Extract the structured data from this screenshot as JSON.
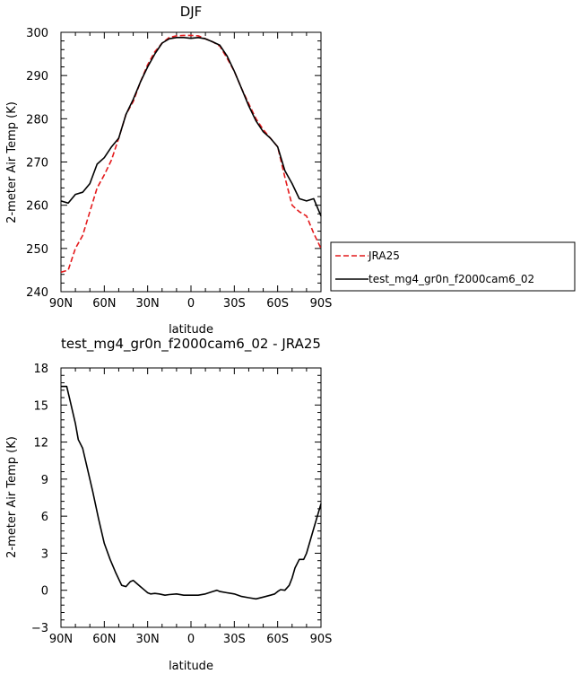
{
  "chart_data": [
    {
      "type": "line",
      "title": "DJF",
      "xlabel": "latitude",
      "ylabel": "2-meter Air Temp (K)",
      "xlim": [
        90,
        -90
      ],
      "ylim": [
        240,
        300
      ],
      "x_tick_values": [
        90,
        60,
        30,
        0,
        -30,
        -60,
        -90
      ],
      "x_tick_labels": [
        "90N",
        "60N",
        "30N",
        "0",
        "30S",
        "60S",
        "90S"
      ],
      "y_tick_values": [
        240,
        250,
        260,
        270,
        280,
        290,
        300
      ],
      "y_tick_labels": [
        "240",
        "250",
        "260",
        "270",
        "280",
        "290",
        "300"
      ],
      "grid": false,
      "legend_position": "right",
      "series": [
        {
          "name": "JRA25",
          "color": "#e41a1c",
          "dash": "dashed",
          "x": [
            90,
            85,
            80,
            75,
            70,
            65,
            60,
            55,
            50,
            45,
            40,
            35,
            30,
            25,
            20,
            15,
            10,
            5,
            0,
            -5,
            -10,
            -15,
            -20,
            -25,
            -30,
            -35,
            -40,
            -45,
            -50,
            -55,
            -60,
            -65,
            -70,
            -75,
            -80,
            -85,
            -90
          ],
          "y": [
            244.5,
            245.0,
            250.0,
            253.0,
            258.5,
            264.0,
            267.0,
            270.5,
            275.5,
            281.0,
            284.0,
            288.5,
            292.5,
            295.5,
            297.5,
            298.8,
            299.2,
            299.3,
            299.3,
            299.2,
            298.5,
            297.8,
            296.8,
            294.0,
            291.0,
            287.0,
            283.5,
            280.0,
            277.5,
            275.5,
            273.5,
            266.5,
            260.0,
            258.5,
            257.5,
            253.5,
            250.0
          ]
        },
        {
          "name": "test_mg4_gr0n_f2000cam6_02",
          "color": "#000000",
          "dash": "solid",
          "x": [
            90,
            85,
            80,
            75,
            70,
            65,
            60,
            55,
            50,
            45,
            40,
            35,
            30,
            25,
            20,
            15,
            10,
            5,
            0,
            -5,
            -10,
            -15,
            -20,
            -25,
            -30,
            -35,
            -40,
            -45,
            -50,
            -55,
            -60,
            -65,
            -70,
            -75,
            -80,
            -85,
            -90
          ],
          "y": [
            261.0,
            260.5,
            262.5,
            263.0,
            265.0,
            269.5,
            271.0,
            273.5,
            275.5,
            281.0,
            284.5,
            288.5,
            292.0,
            295.0,
            297.5,
            298.5,
            298.8,
            298.8,
            298.6,
            298.8,
            298.5,
            297.8,
            297.0,
            294.5,
            291.0,
            287.0,
            283.0,
            279.5,
            277.0,
            275.5,
            273.5,
            268.0,
            265.0,
            261.5,
            261.0,
            261.5,
            257.5
          ]
        }
      ]
    },
    {
      "type": "line",
      "title": "test_mg4_gr0n_f2000cam6_02 - JRA25",
      "xlabel": "latitude",
      "ylabel": "2-meter Air Temp (K)",
      "xlim": [
        90,
        -90
      ],
      "ylim": [
        -3,
        18
      ],
      "x_tick_values": [
        90,
        60,
        30,
        0,
        -30,
        -60,
        -90
      ],
      "x_tick_labels": [
        "90N",
        "60N",
        "30N",
        "0",
        "30S",
        "60S",
        "90S"
      ],
      "y_tick_values": [
        -3,
        0,
        3,
        6,
        9,
        12,
        15,
        18
      ],
      "y_tick_labels": [
        "-3",
        "0",
        "3",
        "6",
        "9",
        "12",
        "15",
        "18"
      ],
      "grid": false,
      "series": [
        {
          "color": "#000000",
          "dash": "solid",
          "x": [
            90,
            86,
            84,
            80,
            78,
            75,
            72,
            68,
            64,
            60,
            56,
            52,
            48,
            45,
            42,
            40,
            38,
            35,
            32,
            30,
            28,
            25,
            22,
            18,
            15,
            10,
            5,
            0,
            -5,
            -10,
            -15,
            -18,
            -20,
            -25,
            -30,
            -35,
            -40,
            -45,
            -50,
            -55,
            -58,
            -60,
            -62,
            -65,
            -68,
            -70,
            -72,
            -75,
            -78,
            -80,
            -85,
            -90
          ],
          "y": [
            16.5,
            16.5,
            15.5,
            13.5,
            12.2,
            11.5,
            10.0,
            8.0,
            5.8,
            3.8,
            2.5,
            1.4,
            0.4,
            0.3,
            0.7,
            0.8,
            0.6,
            0.3,
            0.0,
            -0.2,
            -0.3,
            -0.25,
            -0.3,
            -0.4,
            -0.35,
            -0.3,
            -0.4,
            -0.4,
            -0.4,
            -0.3,
            -0.1,
            0.0,
            -0.1,
            -0.2,
            -0.3,
            -0.5,
            -0.6,
            -0.7,
            -0.55,
            -0.4,
            -0.3,
            -0.1,
            0.05,
            0.0,
            0.4,
            1.0,
            1.8,
            2.5,
            2.5,
            3.0,
            5.0,
            7.0
          ]
        }
      ]
    }
  ]
}
